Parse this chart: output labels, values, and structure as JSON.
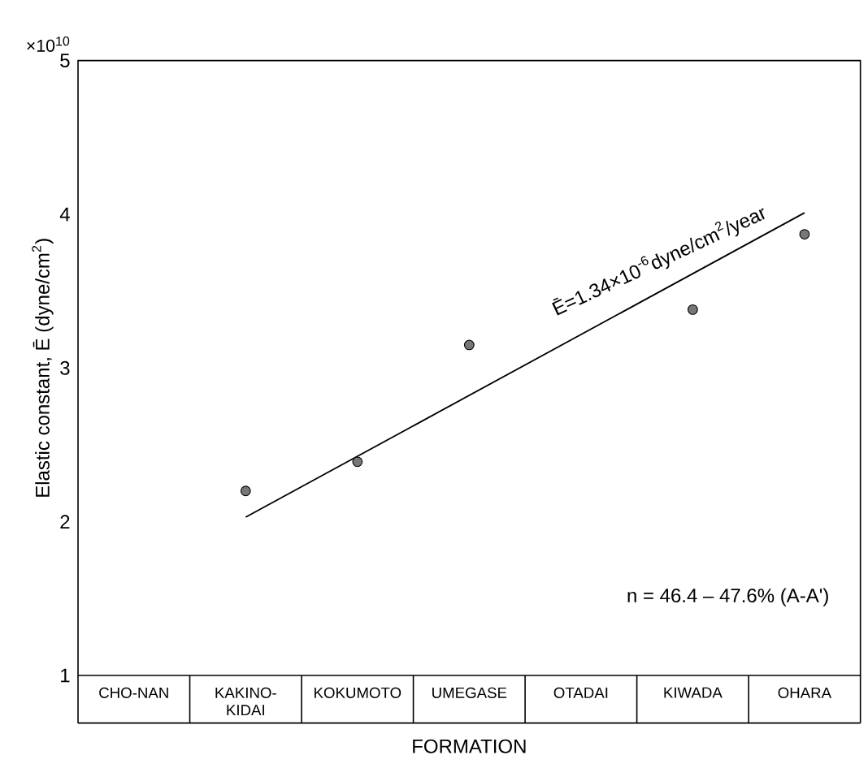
{
  "chart_data": {
    "type": "scatter",
    "ylabel": "Elastic constant, Ē (dyne/cm$^{2}$)",
    "xlabel": "FORMATION",
    "categories": [
      "CHO-NAN",
      "KAKINO-KIDAI",
      "KOKUMOTO",
      "UMEGASE",
      "OTADAI",
      "KIWADA",
      "OHARA"
    ],
    "series": [
      {
        "x": [
          "KAKINO-KIDAI",
          "KOKUMOTO",
          "UMEGASE",
          "KIWADA",
          "OHARA"
        ],
        "values": [
          2.2,
          2.39,
          3.15,
          3.38,
          3.87
        ],
        "color": "#777777",
        "marker": "circle"
      },
      {
        "type": "line",
        "x": [
          "KAKINO-KIDAI",
          "OHARA"
        ],
        "values": [
          2.03,
          4.01
        ],
        "color": "#000000"
      }
    ],
    "ylim": [
      1,
      5
    ],
    "yticks": [
      1,
      2,
      3,
      4,
      5
    ],
    "annotations": [
      "×10$^{10}$",
      "Ē=1.34×10$^{-6}$dyne/cm$^{2}$/year",
      "n = 46.4 – 47.6% (A-A')"
    ]
  }
}
